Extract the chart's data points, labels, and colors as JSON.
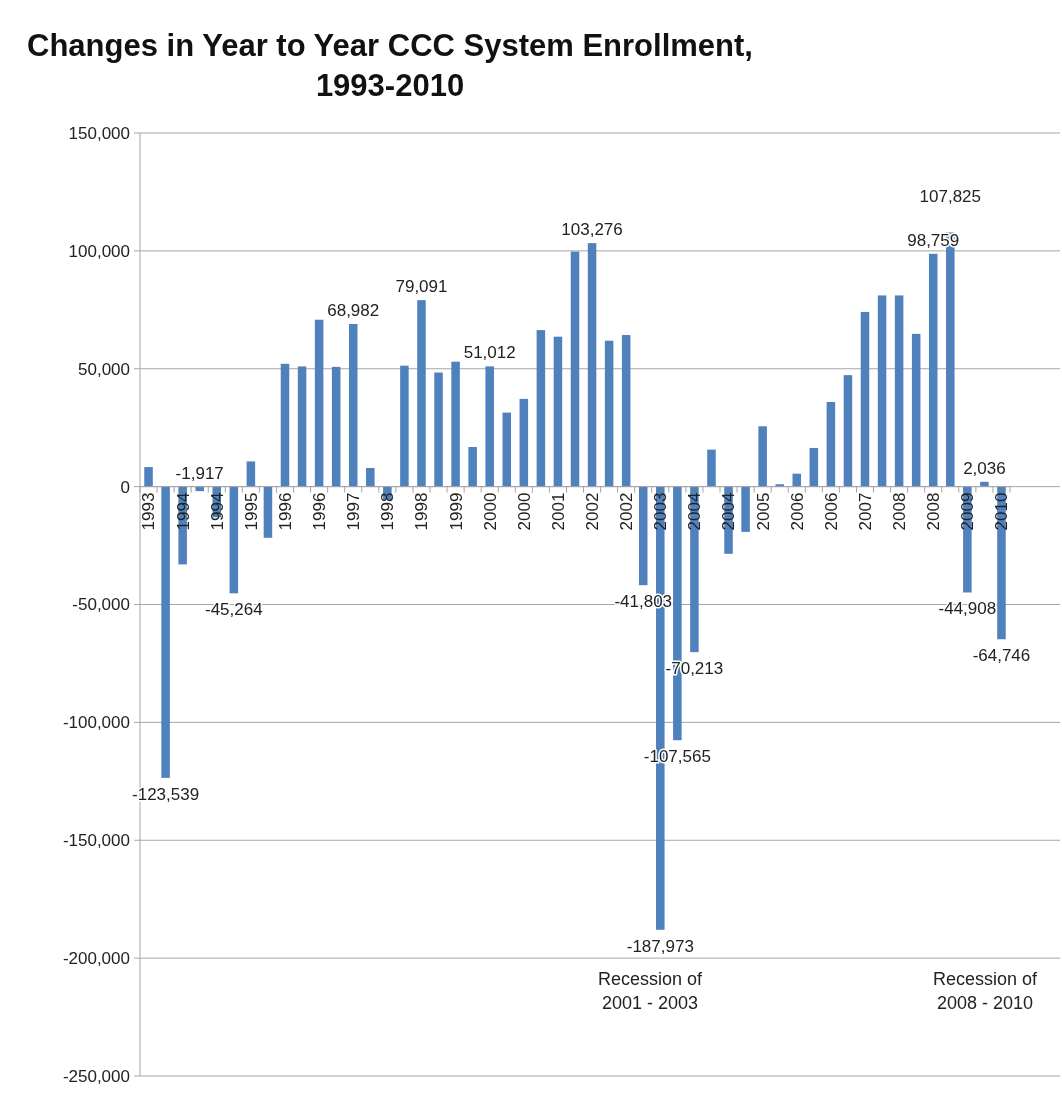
{
  "chart_data": {
    "type": "bar",
    "title": "Changes in Year to Year CCC System Enrollment,\n1993-2010",
    "categories": [
      "1993",
      null,
      "1994",
      null,
      "1994",
      null,
      "1995",
      null,
      "1996",
      null,
      "1996",
      null,
      "1997",
      null,
      "1998",
      null,
      "1998",
      null,
      "1999",
      null,
      "2000",
      null,
      "2000",
      null,
      "2001",
      null,
      "2002",
      null,
      "2002",
      null,
      "2003",
      null,
      "2004",
      null,
      "2004",
      null,
      "2005",
      null,
      "2006",
      null,
      "2006",
      null,
      "2007",
      null,
      "2008",
      null,
      "2008",
      null,
      "2009",
      null,
      "2010"
    ],
    "values": [
      8300,
      -123539,
      -33000,
      -1917,
      -13000,
      -45264,
      10700,
      -21700,
      52100,
      51000,
      70800,
      50800,
      68982,
      7900,
      -5500,
      51300,
      79091,
      48400,
      53000,
      16800,
      51012,
      31400,
      37200,
      66400,
      63600,
      99700,
      103276,
      61900,
      64300,
      -41803,
      -187973,
      -107565,
      -70213,
      15700,
      -28500,
      -19200,
      25600,
      1000,
      5500,
      16400,
      35900,
      47300,
      74100,
      81100,
      81100,
      64800,
      98759,
      107825,
      -44908,
      2036,
      -64746
    ],
    "value_labels": [
      null,
      "-123,539",
      null,
      "-1,917",
      null,
      "-45,264",
      null,
      null,
      null,
      null,
      null,
      null,
      "68,982",
      null,
      null,
      null,
      "79,091",
      null,
      null,
      null,
      "51,012",
      null,
      null,
      null,
      null,
      null,
      "103,276",
      null,
      null,
      "-41,803",
      "-187,973",
      "-107,565",
      "-70,213",
      null,
      null,
      null,
      null,
      null,
      null,
      null,
      null,
      null,
      null,
      null,
      null,
      null,
      "98,759",
      "107,825",
      "-44,908",
      "2,036",
      "-64,746"
    ],
    "color": "#4f81bd",
    "ylim": [
      -250000,
      150000
    ],
    "yticks": [
      {
        "value": -250000,
        "label": "-250,000"
      },
      {
        "value": -200000,
        "label": "-200,000"
      },
      {
        "value": -150000,
        "label": "-150,000"
      },
      {
        "value": -100000,
        "label": "-100,000"
      },
      {
        "value": -50000,
        "label": "-50,000"
      },
      {
        "value": 0,
        "label": "0"
      },
      {
        "value": 50000,
        "label": "50,000"
      },
      {
        "value": 100000,
        "label": "100,000"
      },
      {
        "value": 150000,
        "label": "150,000"
      }
    ],
    "grid": "y",
    "annotations": [
      "Recession of\n2001 - 2003",
      "Recession of\n2008 - 2010"
    ]
  }
}
